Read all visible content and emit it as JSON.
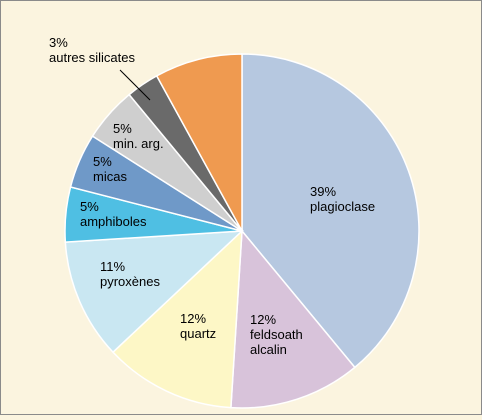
{
  "chart_data": {
    "type": "pie",
    "title": "",
    "slices": [
      {
        "name": "plagioclase",
        "value": 39,
        "value_label": "39%",
        "label_lines": [
          "plagioclase"
        ],
        "color": "#b6c8e0"
      },
      {
        "name": "feldsoath alcalin",
        "value": 12,
        "value_label": "12%",
        "label_lines": [
          "feldsoath",
          "alcalin"
        ],
        "color": "#d8c3da"
      },
      {
        "name": "quartz",
        "value": 12,
        "value_label": "12%",
        "label_lines": [
          "quartz"
        ],
        "color": "#fdf7c6"
      },
      {
        "name": "pyroxènes",
        "value": 11,
        "value_label": "11%",
        "label_lines": [
          "pyroxènes"
        ],
        "color": "#c9e7f2"
      },
      {
        "name": "amphiboles",
        "value": 5,
        "value_label": "5%",
        "label_lines": [
          "amphiboles"
        ],
        "color": "#4fbfe3"
      },
      {
        "name": "micas",
        "value": 5,
        "value_label": "5%",
        "label_lines": [
          "micas"
        ],
        "color": "#6f99c8"
      },
      {
        "name": "min. arg.",
        "value": 5,
        "value_label": "5%",
        "label_lines": [
          "min. arg."
        ],
        "color": "#cfcfcf"
      },
      {
        "name": "autres silicates",
        "value": 3,
        "value_label": "3%",
        "label_lines": [
          "autres silicates"
        ],
        "color": "#6a6a6a"
      },
      {
        "name": "",
        "value": 8,
        "value_label": "",
        "label_lines": [],
        "color": "#ef9a50"
      }
    ],
    "start": "12 o'clock",
    "direction": "clockwise",
    "legend": "none",
    "background_color": "#fbf4df",
    "border_color": "#8a8a8a"
  }
}
